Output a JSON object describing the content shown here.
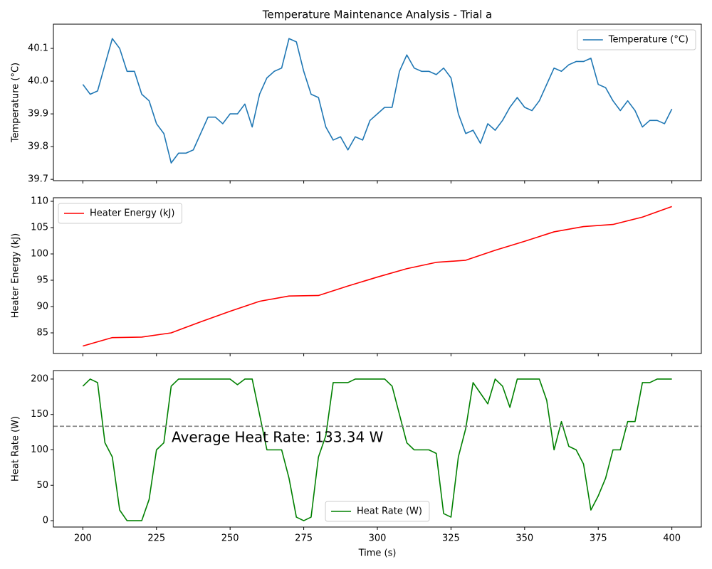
{
  "chart_data": [
    {
      "type": "line",
      "title": "Temperature Maintenance Analysis - Trial a",
      "ylabel": "Temperature (°C)",
      "x": [
        200,
        202.5,
        205,
        207.5,
        210,
        212.5,
        215,
        217.5,
        220,
        222.5,
        225,
        227.5,
        230,
        232.5,
        235,
        237.5,
        240,
        242.5,
        245,
        247.5,
        250,
        252.5,
        255,
        257.5,
        260,
        262.5,
        265,
        267.5,
        270,
        272.5,
        275,
        277.5,
        280,
        282.5,
        285,
        287.5,
        290,
        292.5,
        295,
        297.5,
        300,
        302.5,
        305,
        307.5,
        310,
        312.5,
        315,
        317.5,
        320,
        322.5,
        325,
        327.5,
        330,
        332.5,
        335,
        337.5,
        340,
        342.5,
        345,
        347.5,
        350,
        352.5,
        355,
        357.5,
        360,
        362.5,
        365,
        367.5,
        370,
        372.5,
        375,
        377.5,
        380,
        382.5,
        385,
        387.5,
        390,
        392.5,
        395,
        397.5,
        400
      ],
      "series": [
        {
          "name": "Temperature (°C)",
          "color": "#1f77b4",
          "values": [
            39.99,
            39.96,
            39.97,
            40.05,
            40.13,
            40.1,
            40.03,
            40.03,
            39.96,
            39.94,
            39.87,
            39.84,
            39.75,
            39.78,
            39.78,
            39.79,
            39.84,
            39.89,
            39.89,
            39.87,
            39.9,
            39.9,
            39.93,
            39.86,
            39.96,
            40.01,
            40.03,
            40.04,
            40.13,
            40.12,
            40.03,
            39.96,
            39.95,
            39.86,
            39.82,
            39.83,
            39.79,
            39.83,
            39.82,
            39.88,
            39.9,
            39.92,
            39.92,
            40.03,
            40.08,
            40.04,
            40.03,
            40.03,
            40.02,
            40.04,
            40.01,
            39.9,
            39.84,
            39.85,
            39.81,
            39.87,
            39.85,
            39.88,
            39.92,
            39.95,
            39.92,
            39.91,
            39.94,
            39.99,
            40.04,
            40.03,
            40.05,
            40.06,
            40.06,
            40.07,
            39.99,
            39.98,
            39.94,
            39.91,
            39.94,
            39.91,
            39.86,
            39.88,
            39.88,
            39.87,
            39.915
          ]
        }
      ],
      "xlim": [
        190,
        410
      ],
      "ylim": [
        39.696,
        40.174
      ],
      "xticks": [
        200,
        225,
        250,
        275,
        300,
        325,
        350,
        375,
        400
      ],
      "yticks": [
        39.7,
        39.8,
        39.9,
        {
          "value": 40.0,
          "label": "40.0"
        },
        40.1
      ],
      "legend": "upper right"
    },
    {
      "type": "line",
      "ylabel": "Heater Energy (kJ)",
      "x": [
        200,
        210,
        220,
        230,
        240,
        250,
        260,
        270,
        280,
        290,
        300,
        310,
        320,
        330,
        340,
        350,
        360,
        370,
        380,
        390,
        400
      ],
      "series": [
        {
          "name": "Heater Energy (kJ)",
          "color": "#ff0000",
          "values": [
            82.5,
            84.1,
            84.2,
            85.0,
            87.1,
            89.1,
            91.0,
            92.0,
            92.1,
            93.9,
            95.6,
            97.2,
            98.4,
            98.8,
            100.7,
            102.4,
            104.2,
            105.2,
            105.6,
            107.0,
            109.0
          ]
        }
      ],
      "xlim": [
        190,
        410
      ],
      "ylim": [
        81.08,
        110.68
      ],
      "xticks": [
        200,
        225,
        250,
        275,
        300,
        325,
        350,
        375,
        400
      ],
      "yticks": [
        85,
        90,
        95,
        100,
        105,
        110
      ],
      "legend": "upper left"
    },
    {
      "type": "line",
      "ylabel": "Heat Rate (W)",
      "xlabel": "Time (s)",
      "x": [
        200,
        202.5,
        205,
        207.5,
        210,
        212.5,
        215,
        217.5,
        220,
        222.5,
        225,
        227.5,
        230,
        232.5,
        235,
        237.5,
        240,
        242.5,
        245,
        247.5,
        250,
        252.5,
        255,
        257.5,
        260,
        262.5,
        265,
        267.5,
        270,
        272.5,
        275,
        277.5,
        280,
        282.5,
        285,
        287.5,
        290,
        292.5,
        295,
        297.5,
        300,
        302.5,
        305,
        307.5,
        310,
        312.5,
        315,
        317.5,
        320,
        322.5,
        325,
        327.5,
        330,
        332.5,
        335,
        337.5,
        340,
        342.5,
        345,
        347.5,
        350,
        352.5,
        355,
        357.5,
        360,
        362.5,
        365,
        367.5,
        370,
        372.5,
        375,
        377.5,
        380,
        382.5,
        385,
        387.5,
        390,
        392.5,
        395,
        397.5,
        400
      ],
      "series": [
        {
          "name": "Heat Rate (W)",
          "color": "#008000",
          "values": [
            190,
            200,
            195,
            110,
            90,
            15,
            0,
            0,
            0,
            30,
            100,
            110,
            190,
            200,
            200,
            200,
            200,
            200,
            200,
            200,
            200,
            192,
            200,
            200,
            150,
            100,
            100,
            100,
            60,
            5,
            0,
            5,
            90,
            120,
            195,
            195,
            195,
            200,
            200,
            200,
            200,
            200,
            190,
            150,
            110,
            100,
            100,
            100,
            95,
            10,
            5,
            90,
            130,
            195,
            180,
            165,
            200,
            190,
            160,
            200,
            200,
            200,
            200,
            170,
            100,
            140,
            105,
            100,
            80,
            15,
            35,
            60,
            100,
            100,
            140,
            140,
            195,
            195,
            200,
            200,
            200
          ]
        }
      ],
      "xlim": [
        190,
        410
      ],
      "ylim": [
        -9,
        212
      ],
      "xticks": [
        200,
        225,
        250,
        275,
        300,
        325,
        350,
        375,
        400
      ],
      "yticks": [
        0,
        50,
        100,
        150,
        200
      ],
      "legend": "lower center",
      "hline": {
        "value": 133.34,
        "color": "#808080"
      },
      "annotation": "Average Heat Rate: 133.34 W"
    }
  ]
}
